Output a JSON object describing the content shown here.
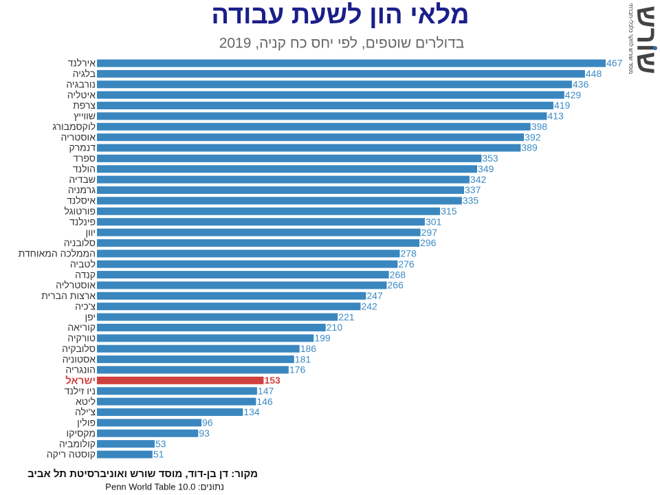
{
  "chart_data": {
    "type": "bar",
    "orientation": "horizontal",
    "title": "מלאי הון לשעת עבודה",
    "subtitle": "בדולרים שוטפים, לפי יחס כח קניה, 2019",
    "categories": [
      "אירלנד",
      "בלגיה",
      "נורבגיה",
      "איטליה",
      "צרפת",
      "שווייץ",
      "לוקסמבורג",
      "אוסטריה",
      "דנמרק",
      "ספרד",
      "הולנד",
      "שבדיה",
      "גרמניה",
      "איסלנד",
      "פורטוגל",
      "פינלנד",
      "יוון",
      "סלובניה",
      "הממלכה המאוחדת",
      "לטביה",
      "קנדה",
      "אוסטרליה",
      "ארצות הברית",
      "צ'כיה",
      "יפן",
      "קוריאה",
      "טורקיה",
      "סלובקיה",
      "אסטוניה",
      "הונגריה",
      "ישראל",
      "ניו זילנד",
      "ליטא",
      "צ'ילה",
      "פולין",
      "מקסיקו",
      "קולומביה",
      "קוסטה ריקה"
    ],
    "values": [
      467,
      448,
      436,
      429,
      419,
      413,
      398,
      392,
      389,
      353,
      349,
      342,
      337,
      335,
      315,
      301,
      297,
      296,
      278,
      276,
      268,
      266,
      247,
      242,
      221,
      210,
      199,
      186,
      181,
      176,
      153,
      147,
      146,
      134,
      96,
      93,
      53,
      51
    ],
    "color": "#3a87c0",
    "colors": [
      "#3a87c0",
      "#3a87c0",
      "#3a87c0",
      "#3a87c0",
      "#3a87c0",
      "#3a87c0",
      "#3a87c0",
      "#3a87c0",
      "#3a87c0",
      "#3a87c0",
      "#3a87c0",
      "#3a87c0",
      "#3a87c0",
      "#3a87c0",
      "#3a87c0",
      "#3a87c0",
      "#3a87c0",
      "#3a87c0",
      "#3a87c0",
      "#3a87c0",
      "#3a87c0",
      "#3a87c0",
      "#3a87c0",
      "#3a87c0",
      "#3a87c0",
      "#3a87c0",
      "#3a87c0",
      "#3a87c0",
      "#3a87c0",
      "#3a87c0",
      "#d0413e",
      "#3a87c0",
      "#3a87c0",
      "#3a87c0",
      "#3a87c0",
      "#3a87c0",
      "#3a87c0",
      "#3a87c0"
    ],
    "source": "מקור:  דן בן-דוד, מוסד שורש ואוניברסיטת תל אביב",
    "data_note": "נתונים: Penn World Table 10.0"
  },
  "logo": {
    "name": "שורש",
    "tagline": "מוסד שורש לחקר כלכלי-חברתי"
  }
}
